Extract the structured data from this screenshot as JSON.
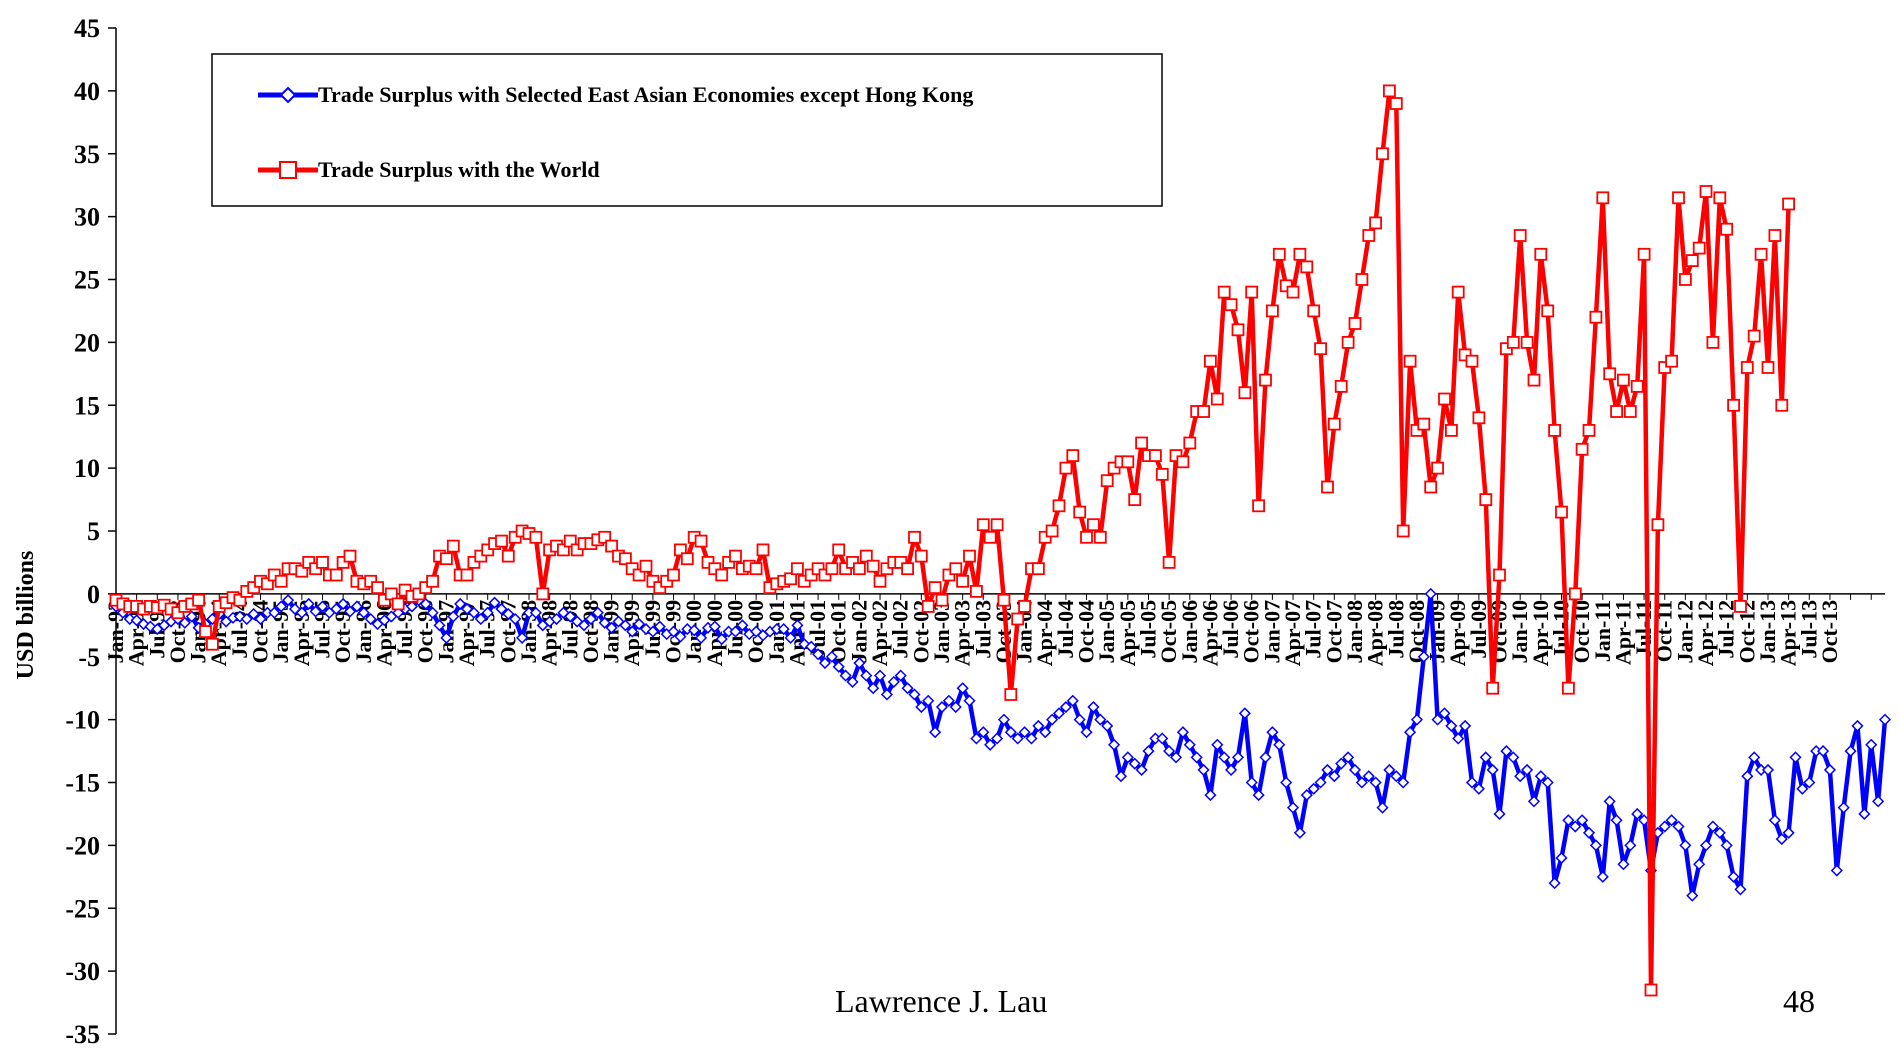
{
  "chart_data": {
    "type": "line",
    "title": "",
    "xlabel": "",
    "ylabel": "USD billions",
    "ylim": [
      -35,
      45
    ],
    "yticks": [
      45,
      40,
      35,
      30,
      25,
      20,
      15,
      10,
      5,
      0,
      -5,
      -10,
      -15,
      -20,
      -25,
      -30,
      -35
    ],
    "ytick_labels": [
      "45",
      "40",
      "35",
      "30",
      "25",
      "20",
      "15",
      "10",
      "5",
      "0",
      "-5",
      "-10",
      "-15",
      "-20",
      "-25",
      "-30",
      "-35"
    ],
    "x_start": "Jan-93",
    "x_end": "Oct-13",
    "x_tick_labels": [
      "Jan-93",
      "Apr-93",
      "Jul-93",
      "Oct-93",
      "Jan-94",
      "Apr-94",
      "Jul-94",
      "Oct-94",
      "Jan-95",
      "Apr-95",
      "Jul-95",
      "Oct-95",
      "Jan-96",
      "Apr-96",
      "Jul-96",
      "Oct-96",
      "Jan-97",
      "Apr-97",
      "Jul-97",
      "Oct-97",
      "Jan-98",
      "Apr-98",
      "Jul-98",
      "Oct-98",
      "Jan-99",
      "Apr-99",
      "Jul-99",
      "Oct-99",
      "Jan-00",
      "Apr-00",
      "Jul-00",
      "Oct-00",
      "Jan-01",
      "Apr-01",
      "Jul-01",
      "Oct-01",
      "Jan-02",
      "Apr-02",
      "Jul-02",
      "Oct-02",
      "Jan-03",
      "Apr-03",
      "Jul-03",
      "Oct-03",
      "Jan-04",
      "Apr-04",
      "Jul-04",
      "Oct-04",
      "Jan-05",
      "Apr-05",
      "Jul-05",
      "Oct-05",
      "Jan-06",
      "Apr-06",
      "Jul-06",
      "Oct-06",
      "Jan-07",
      "Apr-07",
      "Jul-07",
      "Oct-07",
      "Jan-08",
      "Apr-08",
      "Jul-08",
      "Oct-08",
      "Jan-09",
      "Apr-09",
      "Jul-09",
      "Oct-09",
      "Jan-10",
      "Apr-10",
      "Jul-10",
      "Oct-10",
      "Jan-11",
      "Apr-11",
      "Jul-11",
      "Oct-11",
      "Jan-12",
      "Apr-12",
      "Jul-12",
      "Oct-12",
      "Jan-13",
      "Apr-13",
      "Jul-13",
      "Oct-13"
    ],
    "grid": false,
    "legend_position": "top-left",
    "series": [
      {
        "name": "Trade Surplus with Selected East Asian Economies except Hong Kong",
        "color": "#0000ff",
        "marker": "diamond",
        "values": [
          -1.0,
          -1.5,
          -2.0,
          -2.1,
          -2.4,
          -2.6,
          -2.8,
          -2.5,
          -2.2,
          -2.0,
          -2.3,
          -1.8,
          -2.7,
          -2.4,
          -2.0,
          -1.6,
          -2.2,
          -1.9,
          -1.8,
          -2.0,
          -1.6,
          -2.0,
          -1.5,
          -1.5,
          -1.0,
          -0.5,
          -1.2,
          -1.5,
          -0.8,
          -1.4,
          -1.0,
          -1.5,
          -1.2,
          -0.8,
          -1.4,
          -1.0,
          -1.5,
          -2.0,
          -2.4,
          -2.1,
          -1.8,
          -1.5,
          -1.2,
          -1.0,
          -0.5,
          -0.8,
          -1.5,
          -2.5,
          -3.5,
          -1.8,
          -0.8,
          -1.2,
          -1.5,
          -2.0,
          -1.5,
          -0.7,
          -1.2,
          -1.6,
          -2.0,
          -3.5,
          -1.5,
          -1.5,
          -2.5,
          -2.2,
          -2.0,
          -1.5,
          -1.8,
          -2.2,
          -2.5,
          -2.0,
          -1.5,
          -2.3,
          -2.7,
          -2.2,
          -2.5,
          -3.0,
          -2.4,
          -2.8,
          -3.0,
          -2.6,
          -3.2,
          -3.0,
          -3.4,
          -2.8,
          -2.9,
          -3.5,
          -2.7,
          -2.6,
          -3.6,
          -3.0,
          -3.0,
          -2.5,
          -3.2,
          -3.0,
          -3.3,
          -3.0,
          -2.8,
          -2.8,
          -3.5,
          -2.5,
          -4.0,
          -4.2,
          -4.8,
          -5.5,
          -5.0,
          -5.8,
          -6.5,
          -7.0,
          -5.5,
          -6.5,
          -7.5,
          -6.5,
          -8.0,
          -7.0,
          -6.5,
          -7.5,
          -8.0,
          -9.0,
          -8.5,
          -11.0,
          -9.0,
          -8.5,
          -9.0,
          -7.5,
          -8.5,
          -11.5,
          -11.0,
          -12.0,
          -11.5,
          -10.0,
          -11.0,
          -11.5,
          -11.0,
          -11.5,
          -10.5,
          -11.0,
          -10.0,
          -9.5,
          -9.0,
          -8.5,
          -10.0,
          -11.0,
          -9.0,
          -10.0,
          -10.5,
          -12.0,
          -14.5,
          -13.0,
          -13.5,
          -14.0,
          -12.5,
          -11.5,
          -11.5,
          -12.5,
          -13.0,
          -11.0,
          -12.0,
          -13.0,
          -14.0,
          -16.0,
          -12.0,
          -13.0,
          -14.0,
          -13.0,
          -9.5,
          -15.0,
          -16.0,
          -13.0,
          -11.0,
          -12.0,
          -15.0,
          -17.0,
          -19.0,
          -16.0,
          -15.5,
          -15.0,
          -14.0,
          -14.5,
          -13.5,
          -13.0,
          -14.0,
          -15.0,
          -14.5,
          -15.0,
          -17.0,
          -14.0,
          -14.5,
          -15.0,
          -11.0,
          -10.0,
          -5.0,
          0.0,
          -10.0,
          -9.5,
          -10.5,
          -11.5,
          -10.5,
          -15.0,
          -15.5,
          -13.0,
          -14.0,
          -17.5,
          -12.5,
          -13.0,
          -14.5,
          -14.0,
          -16.5,
          -14.5,
          -15.0,
          -23.0,
          -21.0,
          -18.0,
          -18.5,
          -18.0,
          -19.0,
          -20.0,
          -22.5,
          -16.5,
          -18.0,
          -21.5,
          -20.0,
          -17.5,
          -18.0,
          -22.0,
          -19.0,
          -18.5,
          -18.0,
          -18.5,
          -20.0,
          -24.0,
          -21.5,
          -20.0,
          -18.5,
          -19.0,
          -20.0,
          -22.5,
          -23.5,
          -14.5,
          -13.0,
          -14.0,
          -14.0,
          -18.0,
          -19.5,
          -19.0,
          -13.0,
          -15.5,
          -15.0,
          -12.5,
          -12.5,
          -14.0,
          -22.0,
          -17.0,
          -12.5,
          -10.5,
          -17.5,
          -12.0,
          -16.5,
          -10.0
        ]
      },
      {
        "name": "Trade Surplus with the World",
        "color": "#ff0000",
        "marker": "square",
        "values": [
          -0.5,
          -0.8,
          -1.0,
          -1.0,
          -1.2,
          -1.0,
          -1.1,
          -0.9,
          -1.2,
          -1.5,
          -1.0,
          -0.8,
          -0.5,
          -3.0,
          -4.0,
          -1.0,
          -0.7,
          -0.3,
          -0.5,
          0.2,
          0.5,
          1.0,
          0.8,
          1.5,
          1.0,
          2.0,
          2.0,
          1.8,
          2.5,
          2.0,
          2.5,
          1.5,
          1.5,
          2.5,
          3.0,
          1.0,
          0.8,
          1.0,
          0.5,
          -0.5,
          0.0,
          -0.8,
          0.3,
          -0.2,
          0.0,
          0.5,
          1.0,
          3.0,
          2.8,
          3.8,
          1.5,
          1.5,
          2.5,
          3.0,
          3.5,
          4.0,
          4.2,
          3.0,
          4.5,
          5.0,
          4.8,
          4.5,
          0.0,
          3.5,
          3.8,
          3.5,
          4.2,
          3.5,
          4.0,
          4.0,
          4.3,
          4.5,
          3.8,
          3.0,
          2.8,
          2.0,
          1.5,
          2.2,
          1.0,
          0.5,
          1.0,
          1.5,
          3.5,
          2.8,
          4.5,
          4.2,
          2.5,
          2.0,
          1.5,
          2.5,
          3.0,
          2.0,
          2.2,
          2.0,
          3.5,
          0.5,
          0.8,
          1.0,
          1.2,
          2.0,
          1.0,
          1.5,
          2.0,
          1.5,
          2.0,
          3.5,
          2.0,
          2.5,
          2.0,
          3.0,
          2.2,
          1.0,
          2.0,
          2.5,
          2.5,
          2.0,
          4.5,
          3.0,
          -1.0,
          0.5,
          -0.5,
          1.5,
          2.0,
          1.0,
          3.0,
          0.2,
          5.5,
          4.5,
          5.5,
          -0.5,
          -8.0,
          -2.0,
          -1.0,
          2.0,
          2.0,
          4.5,
          5.0,
          7.0,
          10.0,
          11.0,
          6.5,
          4.5,
          5.5,
          4.5,
          9.0,
          10.0,
          10.5,
          10.5,
          7.5,
          12.0,
          11.0,
          11.0,
          9.5,
          2.5,
          11.0,
          10.5,
          12.0,
          14.5,
          14.5,
          18.5,
          15.5,
          24.0,
          23.0,
          21.0,
          16.0,
          24.0,
          7.0,
          17.0,
          22.5,
          27.0,
          24.5,
          24.0,
          27.0,
          26.0,
          22.5,
          19.5,
          8.5,
          13.5,
          16.5,
          20.0,
          21.5,
          25.0,
          28.5,
          29.5,
          35.0,
          40.0,
          39.0,
          5.0,
          18.5,
          13.0,
          13.5,
          8.5,
          10.0,
          15.5,
          13.0,
          24.0,
          19.0,
          18.5,
          14.0,
          7.5,
          -7.5,
          1.5,
          19.5,
          20.0,
          28.5,
          20.0,
          17.0,
          27.0,
          22.5,
          13.0,
          6.5,
          -7.5,
          0.0,
          11.5,
          13.0,
          22.0,
          31.5,
          17.5,
          14.5,
          17.0,
          14.5,
          16.5,
          27.0,
          -31.5,
          5.5,
          18.0,
          18.5,
          31.5,
          25.0,
          26.5,
          27.5,
          32.0,
          20.0,
          31.5,
          29.0,
          15.0,
          -1.0,
          18.0,
          20.5,
          27.0,
          18.0,
          28.5,
          15.0,
          31.0
        ]
      }
    ]
  },
  "legend": {
    "items": [
      {
        "label": "Trade Surplus with Selected East Asian Economies except Hong Kong",
        "color": "#0000ff",
        "marker": "diamond"
      },
      {
        "label": "Trade Surplus with the World",
        "color": "#ff0000",
        "marker": "square"
      }
    ]
  },
  "footer": {
    "author": "Lawrence J. Lau",
    "page_number": "48"
  }
}
